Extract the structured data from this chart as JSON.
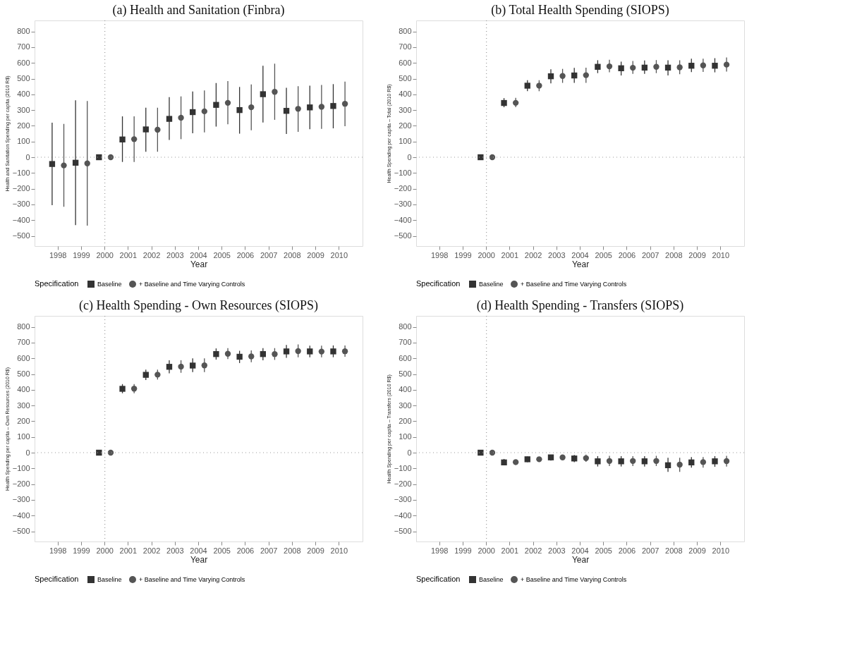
{
  "chart_data": [
    {
      "type": "scatter",
      "title": "(a) Health and Sanitation (Finbra)",
      "xlabel": "Year",
      "ylabel": "Health and Sanitation Spending per capita (2010 R$)",
      "categories": [
        "1998",
        "1999",
        "2000",
        "2001",
        "2002",
        "2003",
        "2004",
        "2005",
        "2006",
        "2007",
        "2008",
        "2009",
        "2010"
      ],
      "ylim": [
        -565,
        870
      ],
      "yticks": [
        -500,
        -400,
        -300,
        -200,
        -100,
        0,
        100,
        200,
        300,
        400,
        500,
        600,
        700,
        800
      ],
      "grid": false,
      "legend": "bottom",
      "legend_title": "Specification",
      "ref_lines": [
        {
          "axis": "y",
          "value": 0,
          "line_style": "dotted",
          "color": "#999999"
        },
        {
          "axis": "x",
          "value": "2000",
          "line_style": "dotted",
          "color": "#999999"
        }
      ],
      "series": [
        {
          "name": "Baseline",
          "color": "#333333",
          "marker": "square",
          "values": [
            -43,
            -35,
            0,
            113,
            177,
            244,
            287,
            333,
            300,
            401,
            295,
            317,
            326
          ],
          "errors": [
            [
              -305,
              220
            ],
            [
              -432,
              362
            ],
            null,
            [
              -30,
              260
            ],
            [
              35,
              315
            ],
            [
              110,
              382
            ],
            [
              152,
              418
            ],
            [
              195,
              472
            ],
            [
              150,
              447
            ],
            [
              221,
              582
            ],
            [
              148,
              442
            ],
            [
              178,
              455
            ],
            [
              184,
              465
            ]
          ]
        },
        {
          "name": "+ Baseline and Time Varying Controls",
          "color": "#555555",
          "marker": "circle",
          "values": [
            -52,
            -39,
            0,
            115,
            175,
            251,
            292,
            346,
            318,
            416,
            308,
            321,
            340
          ],
          "errors": [
            [
              -315,
              212
            ],
            [
              -435,
              358
            ],
            null,
            [
              -30,
              260
            ],
            [
              35,
              315
            ],
            [
              115,
              387
            ],
            [
              158,
              425
            ],
            [
              210,
              484
            ],
            [
              172,
              463
            ],
            [
              238,
              595
            ],
            [
              162,
              452
            ],
            [
              180,
              460
            ],
            [
              197,
              481
            ]
          ]
        }
      ]
    },
    {
      "type": "scatter",
      "title": "(b) Total Health Spending (SIOPS)",
      "xlabel": "Year",
      "ylabel": "Health Spending per capita – Total (2010 R$)",
      "categories": [
        "1998",
        "1999",
        "2000",
        "2001",
        "2002",
        "2003",
        "2004",
        "2005",
        "2006",
        "2007",
        "2008",
        "2009",
        "2010"
      ],
      "ylim": [
        -565,
        870
      ],
      "yticks": [
        -500,
        -400,
        -300,
        -200,
        -100,
        0,
        100,
        200,
        300,
        400,
        500,
        600,
        700,
        800
      ],
      "grid": false,
      "legend": "bottom",
      "legend_title": "Specification",
      "ref_lines": [
        {
          "axis": "y",
          "value": 0,
          "line_style": "dotted",
          "color": "#999999"
        },
        {
          "axis": "x",
          "value": "2000",
          "line_style": "dotted",
          "color": "#999999"
        }
      ],
      "series": [
        {
          "name": "Baseline",
          "color": "#333333",
          "marker": "square",
          "values": [
            null,
            null,
            0,
            345,
            455,
            515,
            520,
            575,
            566,
            570,
            570,
            582,
            582
          ],
          "errors": [
            null,
            null,
            null,
            [
              318,
              376
            ],
            [
              420,
              490
            ],
            [
              470,
              560
            ],
            [
              473,
              568
            ],
            [
              535,
              617
            ],
            [
              520,
              608
            ],
            [
              530,
              615
            ],
            [
              520,
              617
            ],
            [
              542,
              627
            ],
            [
              540,
              630
            ]
          ]
        },
        {
          "name": "+ Baseline and Time Varying Controls",
          "color": "#555555",
          "marker": "circle",
          "values": [
            null,
            null,
            0,
            346,
            455,
            517,
            522,
            578,
            569,
            575,
            572,
            584,
            589
          ],
          "errors": [
            null,
            null,
            null,
            [
              318,
              378
            ],
            [
              420,
              490
            ],
            [
              473,
              562
            ],
            [
              473,
              570
            ],
            [
              540,
              620
            ],
            [
              530,
              612
            ],
            [
              535,
              618
            ],
            [
              528,
              617
            ],
            [
              543,
              627
            ],
            [
              545,
              635
            ]
          ]
        }
      ]
    },
    {
      "type": "scatter",
      "title": "(c) Health Spending - Own Resources (SIOPS)",
      "xlabel": "Year",
      "ylabel": "Health Spending per capita – Own Resources (2010 R$)",
      "categories": [
        "1998",
        "1999",
        "2000",
        "2001",
        "2002",
        "2003",
        "2004",
        "2005",
        "2006",
        "2007",
        "2008",
        "2009",
        "2010"
      ],
      "ylim": [
        -565,
        870
      ],
      "yticks": [
        -500,
        -400,
        -300,
        -200,
        -100,
        0,
        100,
        200,
        300,
        400,
        500,
        600,
        700,
        800
      ],
      "grid": false,
      "legend": "bottom",
      "legend_title": "Specification",
      "ref_lines": [
        {
          "axis": "y",
          "value": 0,
          "line_style": "dotted",
          "color": "#999999"
        },
        {
          "axis": "x",
          "value": "2000",
          "line_style": "dotted",
          "color": "#999999"
        }
      ],
      "series": [
        {
          "name": "Baseline",
          "color": "#333333",
          "marker": "square",
          "values": [
            null,
            null,
            0,
            406,
            495,
            546,
            554,
            627,
            610,
            627,
            644,
            644,
            644
          ],
          "errors": [
            null,
            null,
            null,
            [
              378,
              436
            ],
            [
              462,
              528
            ],
            [
              505,
              587
            ],
            [
              512,
              600
            ],
            [
              592,
              663
            ],
            [
              570,
              648
            ],
            [
              587,
              665
            ],
            [
              603,
              685
            ],
            [
              607,
              680
            ],
            [
              607,
              682
            ]
          ]
        },
        {
          "name": "+ Baseline and Time Varying Controls",
          "color": "#555555",
          "marker": "circle",
          "values": [
            null,
            null,
            0,
            407,
            496,
            547,
            555,
            629,
            612,
            627,
            646,
            643,
            645
          ],
          "errors": [
            null,
            null,
            null,
            [
              378,
              436
            ],
            [
              465,
              528
            ],
            [
              508,
              588
            ],
            [
              512,
              600
            ],
            [
              595,
              665
            ],
            [
              575,
              650
            ],
            [
              590,
              665
            ],
            [
              607,
              688
            ],
            [
              607,
              680
            ],
            [
              610,
              682
            ]
          ]
        }
      ]
    },
    {
      "type": "scatter",
      "title": "(d) Health Spending - Transfers (SIOPS)",
      "xlabel": "Year",
      "ylabel": "Health Spending per capita – Transfers (2010 R$)",
      "categories": [
        "1998",
        "1999",
        "2000",
        "2001",
        "2002",
        "2003",
        "2004",
        "2005",
        "2006",
        "2007",
        "2008",
        "2009",
        "2010"
      ],
      "ylim": [
        -565,
        870
      ],
      "yticks": [
        -500,
        -400,
        -300,
        -200,
        -100,
        0,
        100,
        200,
        300,
        400,
        500,
        600,
        700,
        800
      ],
      "grid": false,
      "legend": "bottom",
      "legend_title": "Specification",
      "ref_lines": [
        {
          "axis": "y",
          "value": 0,
          "line_style": "dotted",
          "color": "#999999"
        },
        {
          "axis": "x",
          "value": "2000",
          "line_style": "dotted",
          "color": "#999999"
        }
      ],
      "series": [
        {
          "name": "Baseline",
          "color": "#333333",
          "marker": "square",
          "values": [
            null,
            null,
            0,
            -62,
            -42,
            -30,
            -37,
            -55,
            -55,
            -55,
            -80,
            -62,
            -55
          ],
          "errors": [
            null,
            null,
            null,
            [
              -80,
              -40
            ],
            [
              -60,
              -25
            ],
            [
              -50,
              -15
            ],
            [
              -60,
              -15
            ],
            [
              -88,
              -22
            ],
            [
              -88,
              -22
            ],
            [
              -88,
              -22
            ],
            [
              -122,
              -33
            ],
            [
              -95,
              -28
            ],
            [
              -90,
              -22
            ]
          ]
        },
        {
          "name": "+ Baseline and Time Varying Controls",
          "color": "#555555",
          "marker": "circle",
          "values": [
            null,
            null,
            0,
            -60,
            -42,
            -30,
            -35,
            -53,
            -53,
            -53,
            -76,
            -60,
            -54
          ],
          "errors": [
            null,
            null,
            null,
            [
              -78,
              -45
            ],
            [
              -58,
              -28
            ],
            [
              -42,
              -20
            ],
            [
              -58,
              -12
            ],
            [
              -85,
              -20
            ],
            [
              -85,
              -22
            ],
            [
              -85,
              -20
            ],
            [
              -122,
              -33
            ],
            [
              -95,
              -28
            ],
            [
              -88,
              -20
            ]
          ]
        }
      ]
    }
  ]
}
